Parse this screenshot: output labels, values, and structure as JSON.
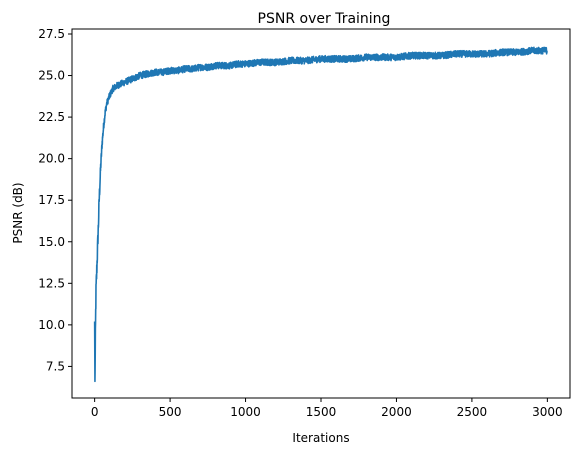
{
  "chart_data": {
    "type": "line",
    "title": "PSNR over Training",
    "xlabel": "Iterations",
    "ylabel": "PSNR (dB)",
    "xlim": [
      -150,
      3150
    ],
    "ylim": [
      5.6,
      27.8
    ],
    "xticks": [
      0,
      500,
      1000,
      1500,
      2000,
      2500,
      3000
    ],
    "yticks": [
      7.5,
      10.0,
      12.5,
      15.0,
      17.5,
      20.0,
      22.5,
      25.0,
      27.5
    ],
    "xtick_labels": [
      "0",
      "500",
      "1000",
      "1500",
      "2000",
      "2500",
      "3000"
    ],
    "ytick_labels": [
      "7.5",
      "10.0",
      "12.5",
      "15.0",
      "17.5",
      "20.0",
      "22.5",
      "25.0",
      "27.5"
    ],
    "grid": false,
    "legend": "none",
    "colors": {
      "series": "#1f77b4",
      "axes": "#000000",
      "background": "#ffffff"
    },
    "series": [
      {
        "x": [
          0,
          2,
          5,
          8,
          10,
          15,
          20,
          25,
          30,
          35,
          40,
          50,
          60,
          70,
          80,
          100,
          120,
          150,
          200,
          250,
          300,
          350,
          400,
          450,
          500,
          550,
          600,
          650,
          700,
          750,
          800,
          850,
          900,
          950,
          1000,
          1100,
          1200,
          1300,
          1400,
          1500,
          1600,
          1700,
          1800,
          1900,
          2000,
          2100,
          2200,
          2300,
          2400,
          2500,
          2600,
          2700,
          2800,
          2900,
          3000
        ],
        "values": [
          10.2,
          6.6,
          9.0,
          11.5,
          12.2,
          13.5,
          14.8,
          16.0,
          17.5,
          18.5,
          19.5,
          21.0,
          22.0,
          22.8,
          23.3,
          23.8,
          24.2,
          24.4,
          24.6,
          24.8,
          25.0,
          25.1,
          25.2,
          25.2,
          25.3,
          25.3,
          25.4,
          25.4,
          25.5,
          25.5,
          25.6,
          25.6,
          25.6,
          25.7,
          25.7,
          25.8,
          25.8,
          25.9,
          25.9,
          26.0,
          26.0,
          26.0,
          26.1,
          26.1,
          26.1,
          26.2,
          26.2,
          26.2,
          26.3,
          26.3,
          26.3,
          26.4,
          26.4,
          26.5,
          26.5
        ],
        "noise_amplitude": [
          0.8,
          0.0,
          0.8,
          0.8,
          0.7,
          0.6,
          0.5,
          0.5,
          0.45,
          0.4,
          0.35,
          0.3,
          0.25,
          0.22,
          0.2,
          0.2,
          0.2,
          0.2,
          0.2,
          0.2,
          0.2,
          0.2,
          0.2,
          0.2,
          0.2,
          0.2,
          0.2,
          0.2,
          0.2,
          0.2,
          0.2,
          0.2,
          0.2,
          0.2,
          0.2,
          0.2,
          0.2,
          0.2,
          0.2,
          0.2,
          0.2,
          0.2,
          0.2,
          0.2,
          0.2,
          0.2,
          0.2,
          0.2,
          0.2,
          0.2,
          0.2,
          0.2,
          0.2,
          0.2,
          0.2
        ]
      }
    ]
  }
}
